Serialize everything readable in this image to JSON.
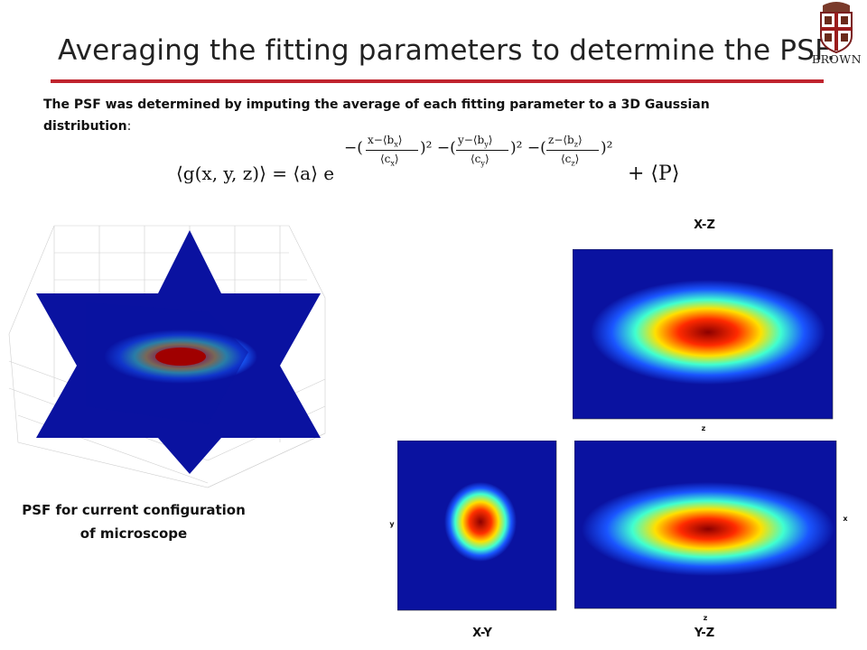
{
  "slide": {
    "title": "Averaging the fitting parameters to determine the PSF.",
    "intro_bold": "The PSF was determined by imputing the average of each fitting parameter to a 3D Gaussian distribution",
    "intro_colon": ":",
    "logo_word": "BROWN"
  },
  "equation": {
    "lhs": "⟨g(x, y, z)⟩ = ⟨a⟩ e",
    "exp_sign1": "−(",
    "frac1_num": "x−⟨b",
    "frac1_num_sub": "x",
    "frac1_den": "⟨c",
    "frac1_den_sub": "x",
    "exp_sign2": ")² −(",
    "frac2_num": "y−⟨b",
    "frac2_num_sub": "y",
    "frac2_den": "⟨c",
    "frac2_den_sub": "y",
    "exp_sign3": ")² −(",
    "frac3_num": "z−⟨b",
    "frac3_num_sub": "z",
    "frac3_den": "⟨c",
    "frac3_den_sub": "z",
    "exp_close": ")²",
    "tail": "+ ⟨P⟩"
  },
  "panels": {
    "xz_label": "X-Z",
    "xy_label": "X-Y",
    "yz_label": "Y-Z",
    "caption_line1": "PSF for current configuration",
    "caption_line2": "of microscope",
    "axis_z": "z",
    "axis_x": "x",
    "axis_y": "y"
  },
  "colors": {
    "accent": "#c0242e",
    "background_blue": "#0a12a0"
  }
}
